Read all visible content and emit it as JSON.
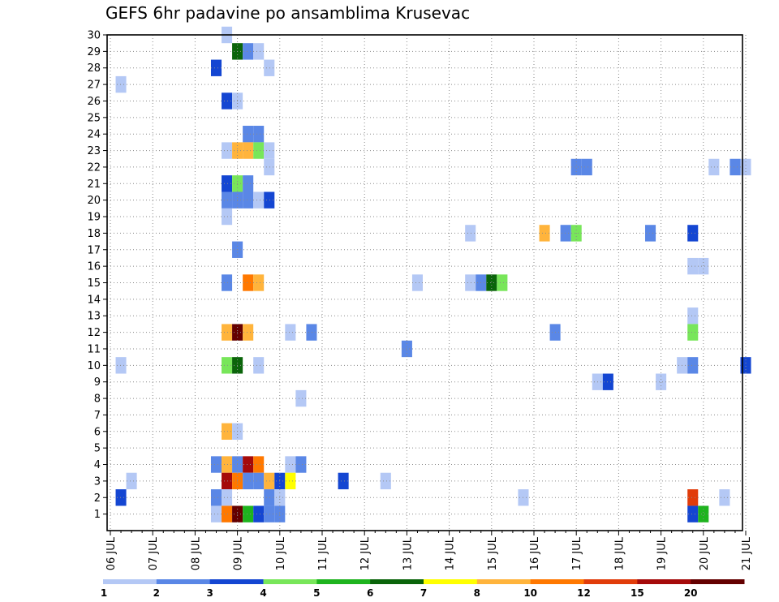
{
  "chart_data": {
    "type": "heatmap",
    "title": "GEFS 6hr padavine po ansamblima Krusevac",
    "xlabel": "",
    "ylabel": "",
    "x_ticks": [
      "06 JUL",
      "07 JUL",
      "08 JUL",
      "09 JUL",
      "10 JUL",
      "11 JUL",
      "12 JUL",
      "13 JUL",
      "14 JUL",
      "15 JUL",
      "16 JUL",
      "17 JUL",
      "18 JUL",
      "19 JUL",
      "20 JUL",
      "21 JUL"
    ],
    "y_ticks": [
      1,
      2,
      3,
      4,
      5,
      6,
      7,
      8,
      9,
      10,
      11,
      12,
      13,
      14,
      15,
      16,
      17,
      18,
      19,
      20,
      21,
      22,
      23,
      24,
      25,
      26,
      27,
      28,
      29,
      30
    ],
    "x_step_hours": 6,
    "ylim": [
      0,
      30
    ],
    "grid": true,
    "colorbar": {
      "thresholds": [
        "1",
        "2",
        "3",
        "4",
        "5",
        "6",
        "7",
        "8",
        "10",
        "12",
        "15",
        "20"
      ],
      "colors": [
        "#b4c8f5",
        "#5a87e6",
        "#1446d2",
        "#78e65a",
        "#1eb41e",
        "#0a640a",
        "#ffff00",
        "#ffb43c",
        "#ff7800",
        "#e13c0a",
        "#a50a0a",
        "#640000"
      ]
    },
    "cells": [
      {
        "x": "08 JUL 18Z",
        "y": 30,
        "v": 1
      },
      {
        "x": "09 JUL 00Z",
        "y": 29,
        "v": 6
      },
      {
        "x": "09 JUL 06Z",
        "y": 29,
        "v": 2
      },
      {
        "x": "09 JUL 12Z",
        "y": 29,
        "v": 1
      },
      {
        "x": "08 JUL 12Z",
        "y": 28,
        "v": 3
      },
      {
        "x": "09 JUL 18Z",
        "y": 28,
        "v": 1
      },
      {
        "x": "06 JUL 06Z",
        "y": 27,
        "v": 1
      },
      {
        "x": "08 JUL 18Z",
        "y": 26,
        "v": 3
      },
      {
        "x": "09 JUL 00Z",
        "y": 26,
        "v": 1
      },
      {
        "x": "09 JUL 06Z",
        "y": 24,
        "v": 2
      },
      {
        "x": "09 JUL 12Z",
        "y": 24,
        "v": 2
      },
      {
        "x": "08 JUL 18Z",
        "y": 23,
        "v": 1
      },
      {
        "x": "09 JUL 00Z",
        "y": 23,
        "v": 8
      },
      {
        "x": "09 JUL 06Z",
        "y": 23,
        "v": 8
      },
      {
        "x": "09 JUL 12Z",
        "y": 23,
        "v": 4
      },
      {
        "x": "09 JUL 18Z",
        "y": 23,
        "v": 1
      },
      {
        "x": "09 JUL 18Z",
        "y": 22,
        "v": 1
      },
      {
        "x": "17 JUL 00Z",
        "y": 22,
        "v": 2
      },
      {
        "x": "17 JUL 06Z",
        "y": 22,
        "v": 2
      },
      {
        "x": "20 JUL 06Z",
        "y": 22,
        "v": 1
      },
      {
        "x": "20 JUL 18Z",
        "y": 22,
        "v": 2
      },
      {
        "x": "21 JUL 00Z",
        "y": 22,
        "v": 1
      },
      {
        "x": "08 JUL 18Z",
        "y": 21,
        "v": 3
      },
      {
        "x": "09 JUL 00Z",
        "y": 21,
        "v": 4
      },
      {
        "x": "09 JUL 06Z",
        "y": 21,
        "v": 2
      },
      {
        "x": "08 JUL 18Z",
        "y": 20,
        "v": 2
      },
      {
        "x": "09 JUL 00Z",
        "y": 20,
        "v": 2
      },
      {
        "x": "09 JUL 06Z",
        "y": 20,
        "v": 2
      },
      {
        "x": "09 JUL 12Z",
        "y": 20,
        "v": 1
      },
      {
        "x": "09 JUL 18Z",
        "y": 20,
        "v": 3
      },
      {
        "x": "08 JUL 18Z",
        "y": 19,
        "v": 1
      },
      {
        "x": "14 JUL 12Z",
        "y": 18,
        "v": 1
      },
      {
        "x": "16 JUL 06Z",
        "y": 18,
        "v": 8
      },
      {
        "x": "16 JUL 18Z",
        "y": 18,
        "v": 2
      },
      {
        "x": "17 JUL 00Z",
        "y": 18,
        "v": 4
      },
      {
        "x": "18 JUL 18Z",
        "y": 18,
        "v": 2
      },
      {
        "x": "19 JUL 18Z",
        "y": 18,
        "v": 3
      },
      {
        "x": "09 JUL 00Z",
        "y": 17,
        "v": 2
      },
      {
        "x": "19 JUL 18Z",
        "y": 16,
        "v": 1
      },
      {
        "x": "20 JUL 00Z",
        "y": 16,
        "v": 1
      },
      {
        "x": "08 JUL 18Z",
        "y": 15,
        "v": 2
      },
      {
        "x": "09 JUL 06Z",
        "y": 15,
        "v": 10
      },
      {
        "x": "09 JUL 12Z",
        "y": 15,
        "v": 8
      },
      {
        "x": "13 JUL 06Z",
        "y": 15,
        "v": 1
      },
      {
        "x": "14 JUL 12Z",
        "y": 15,
        "v": 1
      },
      {
        "x": "14 JUL 18Z",
        "y": 15,
        "v": 2
      },
      {
        "x": "15 JUL 00Z",
        "y": 15,
        "v": 6
      },
      {
        "x": "15 JUL 06Z",
        "y": 15,
        "v": 4
      },
      {
        "x": "19 JUL 18Z",
        "y": 13,
        "v": 1
      },
      {
        "x": "08 JUL 18Z",
        "y": 12,
        "v": 8
      },
      {
        "x": "09 JUL 00Z",
        "y": 12,
        "v": 20
      },
      {
        "x": "09 JUL 06Z",
        "y": 12,
        "v": 8
      },
      {
        "x": "10 JUL 06Z",
        "y": 12,
        "v": 1
      },
      {
        "x": "10 JUL 18Z",
        "y": 12,
        "v": 2
      },
      {
        "x": "16 JUL 12Z",
        "y": 12,
        "v": 2
      },
      {
        "x": "19 JUL 18Z",
        "y": 12,
        "v": 4
      },
      {
        "x": "13 JUL 00Z",
        "y": 11,
        "v": 2
      },
      {
        "x": "06 JUL 06Z",
        "y": 10,
        "v": 1
      },
      {
        "x": "08 JUL 18Z",
        "y": 10,
        "v": 4
      },
      {
        "x": "09 JUL 00Z",
        "y": 10,
        "v": 6
      },
      {
        "x": "09 JUL 12Z",
        "y": 10,
        "v": 1
      },
      {
        "x": "19 JUL 12Z",
        "y": 10,
        "v": 1
      },
      {
        "x": "19 JUL 18Z",
        "y": 10,
        "v": 2
      },
      {
        "x": "21 JUL 00Z",
        "y": 10,
        "v": 3
      },
      {
        "x": "17 JUL 12Z",
        "y": 9,
        "v": 1
      },
      {
        "x": "17 JUL 18Z",
        "y": 9,
        "v": 3
      },
      {
        "x": "19 JUL 00Z",
        "y": 9,
        "v": 1
      },
      {
        "x": "10 JUL 12Z",
        "y": 8,
        "v": 1
      },
      {
        "x": "08 JUL 18Z",
        "y": 6,
        "v": 8
      },
      {
        "x": "09 JUL 00Z",
        "y": 6,
        "v": 1
      },
      {
        "x": "08 JUL 12Z",
        "y": 4,
        "v": 2
      },
      {
        "x": "08 JUL 18Z",
        "y": 4,
        "v": 8
      },
      {
        "x": "09 JUL 00Z",
        "y": 4,
        "v": 2
      },
      {
        "x": "09 JUL 06Z",
        "y": 4,
        "v": 15
      },
      {
        "x": "09 JUL 12Z",
        "y": 4,
        "v": 10
      },
      {
        "x": "10 JUL 06Z",
        "y": 4,
        "v": 1
      },
      {
        "x": "10 JUL 12Z",
        "y": 4,
        "v": 2
      },
      {
        "x": "06 JUL 12Z",
        "y": 3,
        "v": 1
      },
      {
        "x": "08 JUL 18Z",
        "y": 3,
        "v": 15
      },
      {
        "x": "09 JUL 00Z",
        "y": 3,
        "v": 10
      },
      {
        "x": "09 JUL 06Z",
        "y": 3,
        "v": 2
      },
      {
        "x": "09 JUL 12Z",
        "y": 3,
        "v": 2
      },
      {
        "x": "09 JUL 18Z",
        "y": 3,
        "v": 8
      },
      {
        "x": "10 JUL 00Z",
        "y": 3,
        "v": 3
      },
      {
        "x": "10 JUL 06Z",
        "y": 3,
        "v": 7
      },
      {
        "x": "11 JUL 12Z",
        "y": 3,
        "v": 3
      },
      {
        "x": "12 JUL 12Z",
        "y": 3,
        "v": 1
      },
      {
        "x": "06 JUL 06Z",
        "y": 2,
        "v": 3
      },
      {
        "x": "08 JUL 12Z",
        "y": 2,
        "v": 2
      },
      {
        "x": "08 JUL 18Z",
        "y": 2,
        "v": 1
      },
      {
        "x": "09 JUL 18Z",
        "y": 2,
        "v": 2
      },
      {
        "x": "10 JUL 00Z",
        "y": 2,
        "v": 1
      },
      {
        "x": "15 JUL 18Z",
        "y": 2,
        "v": 1
      },
      {
        "x": "19 JUL 18Z",
        "y": 2,
        "v": 12
      },
      {
        "x": "20 JUL 12Z",
        "y": 2,
        "v": 1
      },
      {
        "x": "08 JUL 12Z",
        "y": 1,
        "v": 1
      },
      {
        "x": "08 JUL 18Z",
        "y": 1,
        "v": 10
      },
      {
        "x": "09 JUL 00Z",
        "y": 1,
        "v": 20
      },
      {
        "x": "09 JUL 06Z",
        "y": 1,
        "v": 5
      },
      {
        "x": "09 JUL 12Z",
        "y": 1,
        "v": 3
      },
      {
        "x": "09 JUL 18Z",
        "y": 1,
        "v": 2
      },
      {
        "x": "10 JUL 00Z",
        "y": 1,
        "v": 2
      },
      {
        "x": "19 JUL 18Z",
        "y": 1,
        "v": 3
      },
      {
        "x": "20 JUL 00Z",
        "y": 1,
        "v": 5
      }
    ]
  }
}
